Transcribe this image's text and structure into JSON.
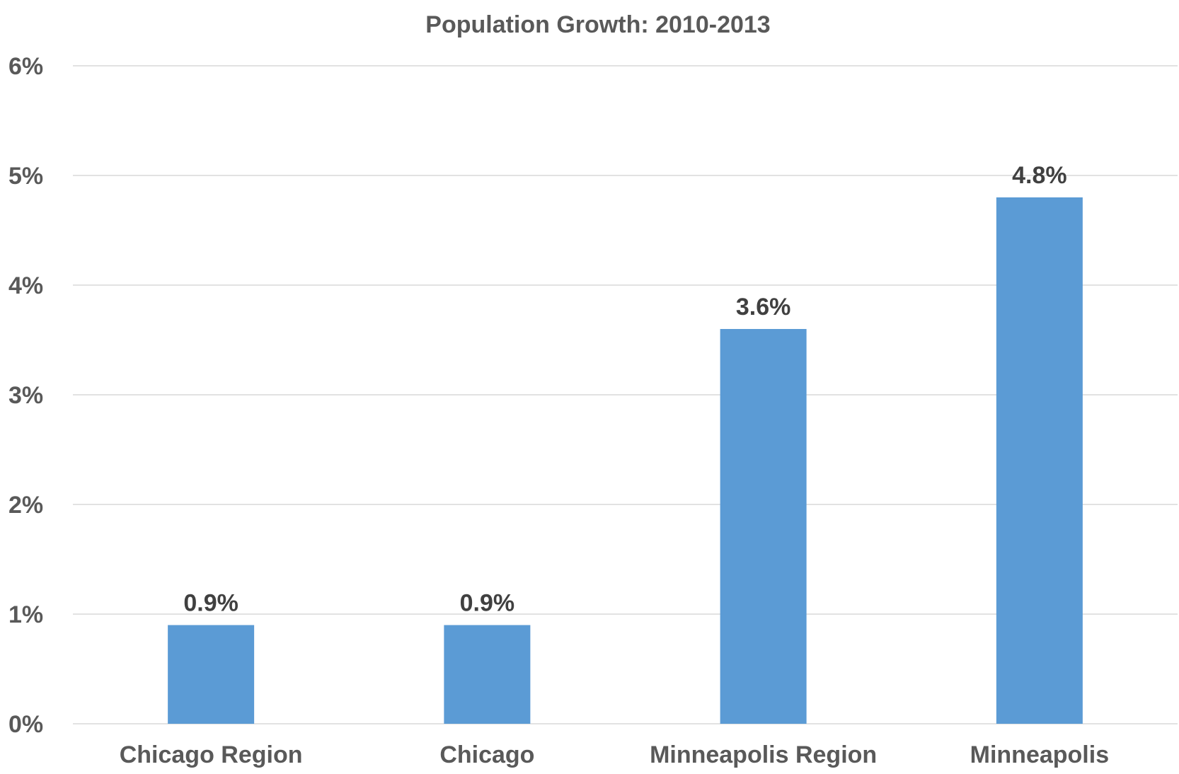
{
  "chart_data": {
    "type": "bar",
    "title": "Population Growth:  2010-2013",
    "xlabel": "",
    "ylabel": "",
    "categories": [
      "Chicago Region",
      "Chicago",
      "Minneapolis Region",
      "Minneapolis"
    ],
    "values": [
      0.9,
      0.9,
      3.6,
      4.8
    ],
    "data_labels": [
      "0.9%",
      "0.9%",
      "3.6%",
      "4.8%"
    ],
    "ylim": [
      0,
      6
    ],
    "yticks": [
      0,
      1,
      2,
      3,
      4,
      5,
      6
    ],
    "ytick_labels": [
      "0%",
      "1%",
      "2%",
      "3%",
      "4%",
      "5%",
      "6%"
    ],
    "grid": true,
    "legend": "none",
    "bar_color": "#5b9bd5"
  }
}
